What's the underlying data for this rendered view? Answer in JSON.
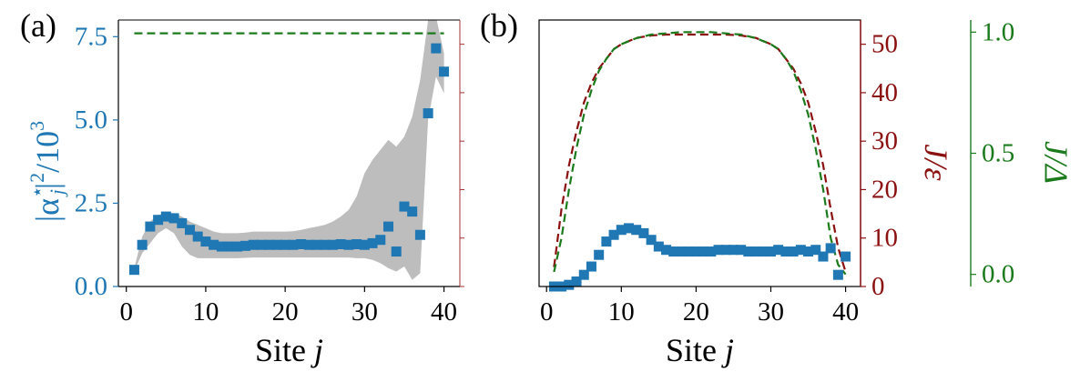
{
  "colors": {
    "blue": "#1f77b4",
    "red": "#8b1010",
    "green": "#1b7a1b",
    "band": "#bdbdbd",
    "axis": "#000000"
  },
  "chart_data": [
    {
      "type": "scatter",
      "panel_label": "(a)",
      "xlabel_text": "Site ",
      "xlabel_var": "j",
      "ylabel": "|α*_j|²/10³",
      "ylabel_base": "|α",
      "ylabel_sup": "⋆",
      "ylabel_sub": "j",
      "ylabel_tail": "|",
      "ylabel_sq": "2",
      "ylabel_div": "/10",
      "ylabel_exp": "3",
      "xlim": [
        -1,
        42
      ],
      "ylim": [
        0,
        8.0
      ],
      "xticks": [
        0,
        10,
        20,
        30,
        40
      ],
      "xtick_labels": [
        "0",
        "10",
        "20",
        "30",
        "40"
      ],
      "yticks": [
        0,
        2.5,
        5.0,
        7.5
      ],
      "ytick_labels": [
        "0.0",
        "2.5",
        "5.0",
        "7.5"
      ],
      "series": [
        {
          "name": "|α*_j|²",
          "kind": "markers",
          "x": [
            1,
            2,
            3,
            4,
            5,
            6,
            7,
            8,
            9,
            10,
            11,
            12,
            13,
            14,
            15,
            16,
            17,
            18,
            19,
            20,
            21,
            22,
            23,
            24,
            25,
            26,
            27,
            28,
            29,
            30,
            31,
            32,
            33,
            34,
            35,
            36,
            37,
            38,
            39,
            40
          ],
          "y": [
            0.5,
            1.25,
            1.8,
            2.0,
            2.1,
            2.05,
            1.9,
            1.7,
            1.5,
            1.35,
            1.25,
            1.2,
            1.2,
            1.2,
            1.22,
            1.25,
            1.25,
            1.25,
            1.25,
            1.25,
            1.25,
            1.27,
            1.25,
            1.25,
            1.25,
            1.25,
            1.27,
            1.25,
            1.27,
            1.25,
            1.3,
            1.4,
            1.8,
            1.05,
            2.4,
            2.25,
            1.55,
            5.2,
            7.15,
            6.45
          ]
        },
        {
          "name": "band",
          "kind": "band",
          "x": [
            1,
            2,
            3,
            4,
            5,
            6,
            7,
            8,
            9,
            10,
            11,
            12,
            13,
            14,
            15,
            16,
            17,
            18,
            19,
            20,
            21,
            22,
            23,
            24,
            25,
            26,
            27,
            28,
            29,
            30,
            31,
            32,
            33,
            34,
            35,
            36,
            37,
            38,
            39,
            40
          ],
          "lower": [
            0.45,
            1.0,
            1.3,
            1.6,
            1.75,
            1.6,
            1.2,
            0.95,
            0.85,
            0.85,
            0.85,
            0.85,
            0.85,
            0.85,
            0.86,
            0.87,
            0.87,
            0.87,
            0.87,
            0.87,
            0.87,
            0.87,
            0.87,
            0.87,
            0.87,
            0.87,
            0.87,
            0.87,
            0.85,
            0.85,
            0.8,
            0.7,
            0.55,
            0.45,
            0.6,
            0.2,
            0.4,
            5.0,
            6.3,
            5.8
          ],
          "upper": [
            0.55,
            1.5,
            1.95,
            2.15,
            2.2,
            2.2,
            2.1,
            1.95,
            1.85,
            1.75,
            1.65,
            1.6,
            1.6,
            1.6,
            1.62,
            1.65,
            1.65,
            1.65,
            1.65,
            1.65,
            1.66,
            1.7,
            1.75,
            1.8,
            1.85,
            1.95,
            2.1,
            2.3,
            2.7,
            3.4,
            3.8,
            4.1,
            4.4,
            4.2,
            4.5,
            5.1,
            6.2,
            8.0,
            8.1,
            7.0
          ]
        },
        {
          "name": "reference",
          "kind": "dashed",
          "x": [
            1,
            40
          ],
          "y": [
            7.6,
            7.6
          ]
        }
      ]
    },
    {
      "type": "line",
      "panel_label": "(b)",
      "xlabel_text": "Site ",
      "xlabel_var": "j",
      "xlim": [
        -1,
        42
      ],
      "xticks": [
        0,
        10,
        20,
        30,
        40
      ],
      "xtick_labels": [
        "0",
        "10",
        "20",
        "30",
        "40"
      ],
      "left_axis": {
        "ylim": [
          0,
          55
        ],
        "yticks": [
          0,
          10,
          20,
          30,
          40,
          50
        ],
        "ytick_labels": [
          "0",
          "10",
          "20",
          "30",
          "40",
          "50"
        ],
        "ylabel": "J/ε"
      },
      "right_axis": {
        "ylim": [
          -0.05,
          1.05
        ],
        "yticks": [
          0.0,
          0.5,
          1.0
        ],
        "ytick_labels": [
          "0.0",
          "0.5",
          "1.0"
        ],
        "ylabel": "J/Δ"
      },
      "series": [
        {
          "name": "J/ε",
          "axis": "left",
          "kind": "dashed",
          "x": [
            1,
            2,
            3,
            4,
            5,
            6,
            7,
            8,
            9,
            10,
            12,
            14,
            16,
            18,
            20,
            22,
            24,
            26,
            28,
            30,
            31,
            32,
            33,
            34,
            35,
            36,
            37,
            38,
            39,
            40
          ],
          "y": [
            4,
            16,
            25,
            32,
            38,
            42,
            45,
            47,
            49,
            50,
            51.3,
            51.8,
            52,
            52,
            52,
            52,
            52,
            51.8,
            51.3,
            50,
            49,
            47,
            45,
            42,
            38,
            32,
            25,
            16,
            8,
            3
          ]
        },
        {
          "name": "J/Δ",
          "axis": "right",
          "kind": "dashed",
          "x": [
            1,
            2,
            3,
            4,
            5,
            6,
            7,
            8,
            9,
            10,
            12,
            14,
            16,
            18,
            20,
            22,
            24,
            26,
            28,
            30,
            31,
            32,
            33,
            34,
            35,
            36,
            37,
            38,
            39,
            40
          ],
          "y": [
            0.01,
            0.15,
            0.35,
            0.52,
            0.66,
            0.76,
            0.84,
            0.89,
            0.93,
            0.95,
            0.975,
            0.99,
            0.995,
            1.0,
            1.0,
            1.0,
            0.995,
            0.99,
            0.975,
            0.95,
            0.93,
            0.89,
            0.84,
            0.76,
            0.66,
            0.52,
            0.35,
            0.15,
            0.04,
            0.0
          ]
        },
        {
          "name": "|α*_j|²",
          "axis": "hidden",
          "kind": "markers",
          "hidden_ylim": [
            0,
            8.0
          ],
          "x": [
            1,
            2,
            3,
            4,
            5,
            6,
            7,
            8,
            9,
            10,
            11,
            12,
            13,
            14,
            15,
            16,
            17,
            18,
            19,
            20,
            21,
            22,
            23,
            24,
            25,
            26,
            27,
            28,
            29,
            30,
            31,
            32,
            33,
            34,
            35,
            36,
            37,
            38,
            39,
            40
          ],
          "y": [
            0.0,
            0.0,
            0.05,
            0.15,
            0.35,
            0.6,
            0.95,
            1.35,
            1.55,
            1.7,
            1.75,
            1.7,
            1.6,
            1.4,
            1.2,
            1.1,
            1.05,
            1.05,
            1.05,
            1.05,
            1.05,
            1.05,
            1.1,
            1.1,
            1.1,
            1.1,
            1.05,
            1.05,
            1.05,
            1.05,
            1.1,
            1.05,
            1.05,
            1.1,
            1.05,
            1.1,
            0.9,
            1.15,
            0.35,
            0.9
          ]
        }
      ]
    }
  ]
}
